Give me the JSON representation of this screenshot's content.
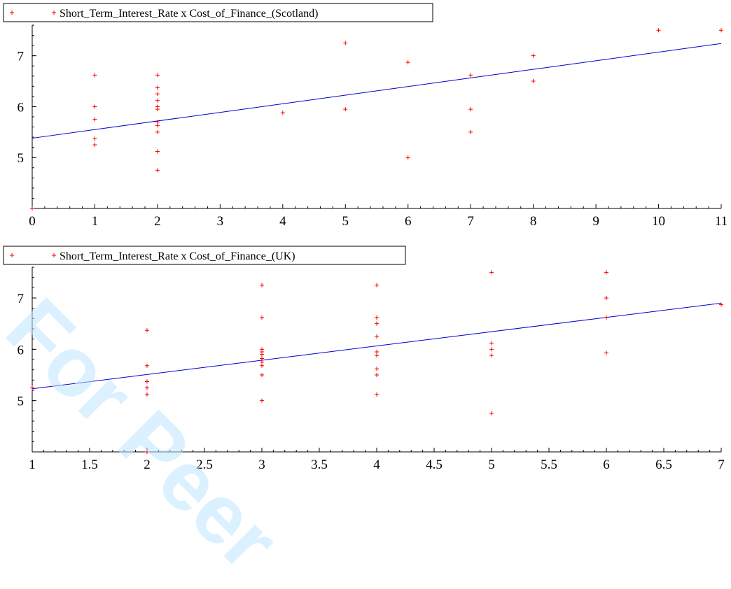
{
  "watermark": "For Peer",
  "colors": {
    "points": "#ff0000",
    "fit_line": "#0000cc",
    "axis": "#000000",
    "watermark": "#bfe6ff"
  },
  "chart_data": [
    {
      "type": "scatter",
      "title": "",
      "legend": {
        "placement": "top-left",
        "label": "Short_Term_Interest_Rate x Cost_of_Finance_(Scotland)"
      },
      "xlim": [
        0,
        11
      ],
      "ylim": [
        4,
        7.6
      ],
      "xticks": [
        0,
        1,
        2,
        3,
        4,
        5,
        6,
        7,
        8,
        9,
        10,
        11
      ],
      "xtick_labels": [
        "0",
        "1",
        "2",
        "3",
        "4",
        "5",
        "6",
        "7",
        "8",
        "9",
        "10",
        "11"
      ],
      "yticks": [
        5,
        6,
        7
      ],
      "ytick_labels": [
        "5",
        "6",
        "7"
      ],
      "grid": false,
      "series": [
        {
          "name": "Short_Term_Interest_Rate x Cost_of_Finance_(Scotland)",
          "points": [
            [
              0,
              4.0
            ],
            [
              1,
              6.62
            ],
            [
              1,
              6.0
            ],
            [
              1,
              5.75
            ],
            [
              1,
              5.37
            ],
            [
              1,
              5.25
            ],
            [
              2,
              6.62
            ],
            [
              2,
              6.37
            ],
            [
              2,
              6.25
            ],
            [
              2,
              6.12
            ],
            [
              2,
              6.0
            ],
            [
              2,
              5.95
            ],
            [
              2,
              5.7
            ],
            [
              2,
              5.63
            ],
            [
              2,
              5.5
            ],
            [
              2,
              5.12
            ],
            [
              2,
              4.75
            ],
            [
              4,
              5.88
            ],
            [
              5,
              7.25
            ],
            [
              5,
              5.95
            ],
            [
              6,
              6.87
            ],
            [
              6,
              5.0
            ],
            [
              7,
              6.62
            ],
            [
              7,
              5.95
            ],
            [
              7,
              5.5
            ],
            [
              8,
              7.0
            ],
            [
              8,
              6.5
            ],
            [
              10,
              7.5
            ],
            [
              11,
              7.5
            ]
          ]
        }
      ],
      "fit_line": {
        "x": [
          0,
          11
        ],
        "y": [
          5.38,
          7.24
        ]
      }
    },
    {
      "type": "scatter",
      "title": "",
      "legend": {
        "placement": "top-left",
        "label": "Short_Term_Interest_Rate x Cost_of_Finance_(UK)"
      },
      "xlim": [
        1,
        7
      ],
      "ylim": [
        4,
        7.6
      ],
      "xticks": [
        1,
        1.5,
        2,
        2.5,
        3,
        3.5,
        4,
        4.5,
        5,
        5.5,
        6,
        6.5,
        7
      ],
      "xtick_labels": [
        "1",
        "1.5",
        "2",
        "2.5",
        "3",
        "3.5",
        "4",
        "4.5",
        "5",
        "5.5",
        "6",
        "6.5",
        "7"
      ],
      "yticks": [
        5,
        6,
        7
      ],
      "ytick_labels": [
        "5",
        "6",
        "7"
      ],
      "grid": false,
      "series": [
        {
          "name": "Short_Term_Interest_Rate x Cost_of_Finance_(UK)",
          "points": [
            [
              1,
              5.25
            ],
            [
              2,
              6.37
            ],
            [
              2,
              5.68
            ],
            [
              2,
              5.37
            ],
            [
              2,
              5.25
            ],
            [
              2,
              5.12
            ],
            [
              2,
              4.0
            ],
            [
              3,
              7.25
            ],
            [
              3,
              6.62
            ],
            [
              3,
              6.0
            ],
            [
              3,
              5.95
            ],
            [
              3,
              5.9
            ],
            [
              3,
              5.82
            ],
            [
              3,
              5.75
            ],
            [
              3,
              5.68
            ],
            [
              3,
              5.5
            ],
            [
              3,
              5.0
            ],
            [
              4,
              7.25
            ],
            [
              4,
              6.62
            ],
            [
              4,
              6.5
            ],
            [
              4,
              6.25
            ],
            [
              4,
              5.95
            ],
            [
              4,
              5.88
            ],
            [
              4,
              5.62
            ],
            [
              4,
              5.5
            ],
            [
              4,
              5.12
            ],
            [
              5,
              7.5
            ],
            [
              5,
              6.12
            ],
            [
              5,
              6.0
            ],
            [
              5,
              5.88
            ],
            [
              5,
              4.75
            ],
            [
              6,
              7.5
            ],
            [
              6,
              7.0
            ],
            [
              6,
              6.62
            ],
            [
              6,
              5.93
            ],
            [
              7,
              6.87
            ]
          ]
        }
      ],
      "fit_line": {
        "x": [
          1,
          7
        ],
        "y": [
          5.23,
          6.9
        ]
      }
    }
  ]
}
